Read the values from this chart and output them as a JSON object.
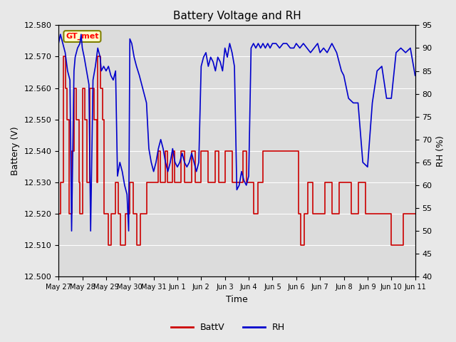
{
  "title": "Battery Voltage and RH",
  "xlabel": "Time",
  "ylabel_left": "Battery (V)",
  "ylabel_right": "RH (%)",
  "annotation": "GT_met",
  "ylim_left": [
    12.5,
    12.58
  ],
  "ylim_right": [
    40,
    95
  ],
  "yticks_left": [
    12.5,
    12.51,
    12.52,
    12.53,
    12.54,
    12.55,
    12.56,
    12.57,
    12.58
  ],
  "yticks_right": [
    40,
    45,
    50,
    55,
    60,
    65,
    70,
    75,
    80,
    85,
    90,
    95
  ],
  "xtick_labels": [
    "May 27",
    "May 28",
    "May 29",
    "May 30",
    "May 31",
    "Jun 1",
    "Jun 2",
    "Jun 3",
    "Jun 4",
    "Jun 5",
    "Jun 6",
    "Jun 7",
    "Jun 8",
    "Jun 9",
    "Jun 10",
    "Jun 11"
  ],
  "fig_bg": "#e8e8e8",
  "plot_bg": "#dcdcdc",
  "color_battv": "#cc0000",
  "color_rh": "#0000cc",
  "legend_entries": [
    "BattV",
    "RH"
  ],
  "battv_x": [
    0.0,
    0.1,
    0.2,
    0.3,
    0.35,
    0.45,
    0.55,
    0.65,
    0.75,
    0.85,
    0.9,
    1.0,
    1.1,
    1.2,
    1.3,
    1.4,
    1.5,
    1.6,
    1.65,
    1.75,
    1.85,
    1.9,
    2.0,
    2.1,
    2.2,
    2.3,
    2.4,
    2.5,
    2.6,
    2.7,
    2.8,
    2.9,
    3.0,
    3.15,
    3.3,
    3.45,
    3.6,
    3.7,
    3.8,
    3.9,
    4.0,
    4.1,
    4.2,
    4.28,
    4.38,
    4.48,
    4.58,
    4.68,
    4.78,
    4.88,
    5.0,
    5.15,
    5.3,
    5.45,
    5.6,
    5.75,
    5.9,
    6.0,
    6.15,
    6.3,
    6.45,
    6.6,
    6.75,
    6.9,
    7.0,
    7.15,
    7.3,
    7.45,
    7.6,
    7.75,
    7.9,
    8.0,
    8.2,
    8.4,
    8.5,
    8.6,
    8.75,
    8.9,
    9.0,
    9.2,
    9.4,
    9.6,
    9.8,
    10.0,
    10.1,
    10.2,
    10.35,
    10.5,
    10.7,
    10.9,
    11.0,
    11.2,
    11.5,
    11.8,
    12.0,
    12.3,
    12.6,
    12.9,
    13.0,
    13.5,
    14.0,
    14.5,
    15.0
  ],
  "battv_y": [
    12.52,
    12.53,
    12.57,
    12.56,
    12.55,
    12.52,
    12.54,
    12.56,
    12.55,
    12.53,
    12.52,
    12.56,
    12.55,
    12.53,
    12.56,
    12.56,
    12.55,
    12.53,
    12.57,
    12.56,
    12.55,
    12.52,
    12.52,
    12.51,
    12.52,
    12.52,
    12.53,
    12.52,
    12.51,
    12.51,
    12.52,
    12.52,
    12.53,
    12.52,
    12.51,
    12.52,
    12.52,
    12.53,
    12.53,
    12.53,
    12.53,
    12.53,
    12.54,
    12.53,
    12.53,
    12.54,
    12.53,
    12.53,
    12.54,
    12.53,
    12.53,
    12.54,
    12.53,
    12.53,
    12.54,
    12.53,
    12.53,
    12.54,
    12.54,
    12.53,
    12.53,
    12.54,
    12.53,
    12.53,
    12.54,
    12.54,
    12.53,
    12.53,
    12.53,
    12.54,
    12.53,
    12.53,
    12.52,
    12.53,
    12.53,
    12.54,
    12.54,
    12.54,
    12.54,
    12.54,
    12.54,
    12.54,
    12.54,
    12.54,
    12.52,
    12.51,
    12.52,
    12.53,
    12.52,
    12.52,
    12.52,
    12.53,
    12.52,
    12.53,
    12.53,
    12.52,
    12.53,
    12.52,
    12.52,
    12.52,
    12.51,
    12.52,
    12.52
  ],
  "rh_x": [
    0.0,
    0.08,
    0.18,
    0.28,
    0.38,
    0.48,
    0.55,
    0.65,
    0.7,
    0.8,
    0.9,
    0.95,
    1.0,
    1.08,
    1.18,
    1.28,
    1.35,
    1.45,
    1.55,
    1.65,
    1.75,
    1.8,
    1.9,
    2.0,
    2.1,
    2.2,
    2.3,
    2.4,
    2.48,
    2.58,
    2.68,
    2.78,
    2.88,
    2.95,
    3.0,
    3.08,
    3.18,
    3.28,
    3.4,
    3.5,
    3.6,
    3.7,
    3.8,
    3.9,
    4.0,
    4.1,
    4.2,
    4.3,
    4.4,
    4.5,
    4.6,
    4.7,
    4.8,
    4.9,
    5.0,
    5.1,
    5.2,
    5.3,
    5.4,
    5.5,
    5.6,
    5.7,
    5.8,
    5.9,
    6.0,
    6.1,
    6.2,
    6.3,
    6.4,
    6.5,
    6.6,
    6.7,
    6.8,
    6.9,
    7.0,
    7.1,
    7.2,
    7.3,
    7.4,
    7.5,
    7.6,
    7.7,
    7.8,
    7.9,
    8.0,
    8.1,
    8.2,
    8.3,
    8.4,
    8.5,
    8.6,
    8.7,
    8.8,
    8.9,
    9.0,
    9.15,
    9.3,
    9.45,
    9.6,
    9.75,
    9.9,
    10.0,
    10.15,
    10.3,
    10.45,
    10.6,
    10.75,
    10.9,
    11.0,
    11.15,
    11.3,
    11.5,
    11.7,
    11.9,
    12.0,
    12.2,
    12.4,
    12.6,
    12.8,
    13.0,
    13.2,
    13.4,
    13.6,
    13.8,
    14.0,
    14.2,
    14.4,
    14.6,
    14.8,
    15.0
  ],
  "rh_y": [
    91,
    93,
    91,
    89,
    85,
    83,
    50,
    85,
    88,
    90,
    91,
    93,
    90,
    88,
    85,
    82,
    50,
    83,
    86,
    90,
    88,
    85,
    86,
    85,
    86,
    84,
    83,
    85,
    62,
    65,
    63,
    60,
    58,
    50,
    92,
    91,
    88,
    86,
    84,
    82,
    80,
    78,
    68,
    65,
    63,
    65,
    68,
    70,
    68,
    65,
    63,
    65,
    68,
    65,
    64,
    65,
    67,
    65,
    64,
    65,
    67,
    65,
    63,
    65,
    86,
    88,
    89,
    86,
    88,
    87,
    85,
    88,
    87,
    85,
    90,
    88,
    91,
    89,
    86,
    59,
    60,
    63,
    61,
    60,
    62,
    90,
    91,
    90,
    91,
    90,
    91,
    90,
    91,
    90,
    91,
    91,
    90,
    91,
    91,
    90,
    90,
    91,
    90,
    91,
    90,
    89,
    90,
    91,
    89,
    90,
    89,
    91,
    89,
    85,
    84,
    79,
    78,
    78,
    65,
    64,
    78,
    85,
    86,
    79,
    79,
    89,
    90,
    89,
    90,
    84
  ]
}
